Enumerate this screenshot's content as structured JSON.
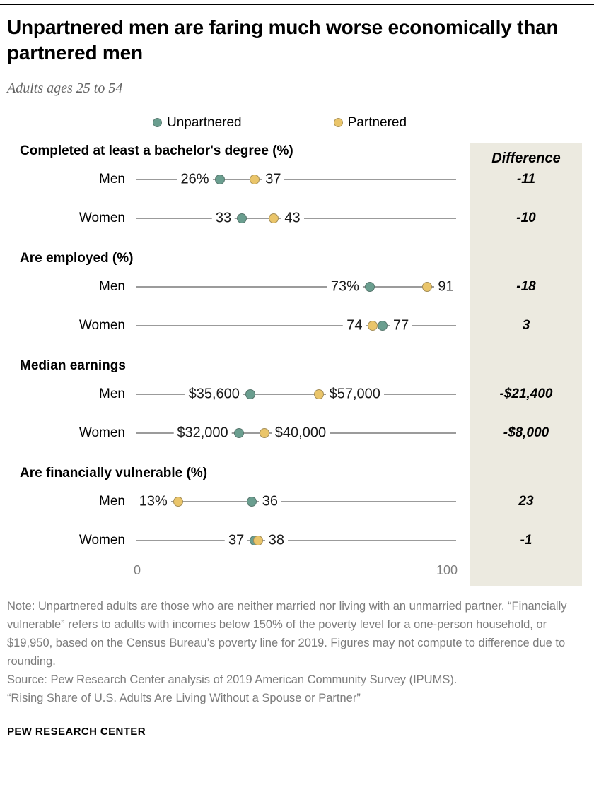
{
  "header": {
    "title": "Unpartnered men are faring much worse economically than partnered men",
    "subtitle": "Adults ages 25 to 54"
  },
  "chart_data": {
    "type": "dot-plot",
    "axis": {
      "min": 0,
      "max": 100,
      "tick_labels": [
        "0",
        "100"
      ]
    },
    "legend": [
      {
        "name": "Unpartnered",
        "color": "#6A9E8F"
      },
      {
        "name": "Partnered",
        "color": "#EAC56A"
      }
    ],
    "difference_header": "Difference",
    "sections": [
      {
        "title": "Completed at least a bachelor's degree (%)",
        "rows": [
          {
            "label": "Men",
            "points": [
              {
                "series": "Unpartnered",
                "value": 26,
                "text": "26%"
              },
              {
                "series": "Partnered",
                "value": 37,
                "text": "37"
              }
            ],
            "difference": "-11"
          },
          {
            "label": "Women",
            "points": [
              {
                "series": "Unpartnered",
                "value": 33,
                "text": "33"
              },
              {
                "series": "Partnered",
                "value": 43,
                "text": "43"
              }
            ],
            "difference": "-10"
          }
        ]
      },
      {
        "title": "Are employed (%)",
        "rows": [
          {
            "label": "Men",
            "points": [
              {
                "series": "Unpartnered",
                "value": 73,
                "text": "73%"
              },
              {
                "series": "Partnered",
                "value": 91,
                "text": "91"
              }
            ],
            "difference": "-18"
          },
          {
            "label": "Women",
            "points": [
              {
                "series": "Partnered",
                "value": 74,
                "text": "74"
              },
              {
                "series": "Unpartnered",
                "value": 77,
                "text": "77"
              }
            ],
            "difference": "3"
          }
        ]
      },
      {
        "title": "Median earnings",
        "rows": [
          {
            "label": "Men",
            "points": [
              {
                "series": "Unpartnered",
                "value": 35.6,
                "text": "$35,600"
              },
              {
                "series": "Partnered",
                "value": 57,
                "text": "$57,000"
              }
            ],
            "difference": "-$21,400"
          },
          {
            "label": "Women",
            "points": [
              {
                "series": "Unpartnered",
                "value": 32,
                "text": "$32,000"
              },
              {
                "series": "Partnered",
                "value": 40,
                "text": "$40,000"
              }
            ],
            "difference": "-$8,000"
          }
        ]
      },
      {
        "title": "Are financially vulnerable (%)",
        "rows": [
          {
            "label": "Men",
            "points": [
              {
                "series": "Partnered",
                "value": 13,
                "text": "13%"
              },
              {
                "series": "Unpartnered",
                "value": 36,
                "text": "36"
              }
            ],
            "difference": "23"
          },
          {
            "label": "Women",
            "points": [
              {
                "series": "Unpartnered",
                "value": 37,
                "text": "37"
              },
              {
                "series": "Partnered",
                "value": 38,
                "text": "38"
              }
            ],
            "difference": "-1"
          }
        ]
      }
    ]
  },
  "notes": {
    "note": "Note: Unpartnered adults are those who are neither married nor living with an unmarried partner. “Financially vulnerable” refers to adults with incomes below 150% of the poverty level for a one-person household, or $19,950, based on the Census Bureau’s poverty line for 2019. Figures may not compute to difference due to rounding.",
    "source": "Source: Pew Research Center analysis of 2019 American Community Survey (IPUMS).",
    "report": "“Rising Share of U.S. Adults Are Living Without a Spouse or Partner”"
  },
  "footer": {
    "brand": "PEW RESEARCH CENTER"
  }
}
